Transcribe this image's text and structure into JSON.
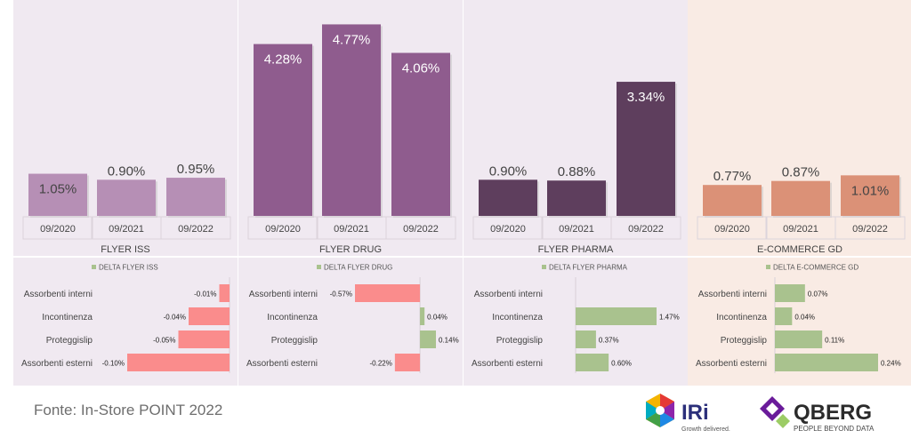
{
  "colors": {
    "iss_bar": "#b68fb5",
    "drug_bar": "#8f5c8e",
    "pharma_bar": "#5e3e5d",
    "ecom_bar": "#db9177",
    "neg_bar": "#fa8c8c",
    "pos_bar": "#a9c28e",
    "bg_purple": "#f0e9f1",
    "bg_peach": "#f9ebe4"
  },
  "chart_data": [
    {
      "type": "bar",
      "categories": [
        "09/2020",
        "09/2021",
        "09/2022"
      ],
      "values": [
        1.05,
        0.9,
        0.95
      ],
      "value_labels": [
        "1.05%",
        "0.90%",
        "0.95%"
      ],
      "xlabel": "FLYER ISS",
      "ylim": [
        0,
        5.2
      ],
      "legend": "top-center",
      "delta": {
        "legend": "DELTA FLYER ISS",
        "categories": [
          "Assorbenti interni",
          "Incontinenza",
          "Proteggislip",
          "Assorbenti esterni"
        ],
        "values": [
          -0.01,
          -0.04,
          -0.05,
          -0.1
        ],
        "value_labels": [
          "-0.01%",
          "-0.04%",
          "-0.05%",
          "-0.10%"
        ],
        "xlim": [
          -0.1,
          0
        ]
      }
    },
    {
      "type": "bar",
      "categories": [
        "09/2020",
        "09/2021",
        "09/2022"
      ],
      "values": [
        4.28,
        4.77,
        4.06
      ],
      "value_labels": [
        "4.28%",
        "4.77%",
        "4.06%"
      ],
      "xlabel": "FLYER DRUG",
      "ylim": [
        0,
        5.2
      ],
      "legend": "top-center",
      "delta": {
        "legend": "DELTA FLYER DRUG",
        "categories": [
          "Assorbenti interni",
          "Incontinenza",
          "Proteggislip",
          "Assorbenti esterni"
        ],
        "values": [
          -0.57,
          0.04,
          0.14,
          -0.22
        ],
        "value_labels": [
          "-0.57%",
          "0.04%",
          "0.14%",
          "-0.22%"
        ],
        "xlim": [
          -0.57,
          0.14
        ]
      }
    },
    {
      "type": "bar",
      "categories": [
        "09/2020",
        "09/2021",
        "09/2022"
      ],
      "values": [
        0.9,
        0.88,
        3.34
      ],
      "value_labels": [
        "0.90%",
        "0.88%",
        "3.34%"
      ],
      "xlabel": "FLYER PHARMA",
      "ylim": [
        0,
        5.2
      ],
      "legend": "top-center",
      "delta": {
        "legend": "DELTA FLYER PHARMA",
        "categories": [
          "Assorbenti interni",
          "Incontinenza",
          "Proteggislip",
          "Assorbenti esterni"
        ],
        "values": [
          0,
          1.47,
          0.37,
          0.6
        ],
        "value_labels": [
          "",
          "1.47%",
          "0.37%",
          "0.60%"
        ],
        "xlim": [
          0,
          1.47
        ]
      }
    },
    {
      "type": "bar",
      "categories": [
        "09/2020",
        "09/2021",
        "09/2022"
      ],
      "values": [
        0.77,
        0.87,
        1.01
      ],
      "value_labels": [
        "0.77%",
        "0.87%",
        "1.01%"
      ],
      "xlabel": "E-COMMERCE GD",
      "ylim": [
        0,
        5.2
      ],
      "legend": "top-center",
      "delta": {
        "legend": "DELTA E-COMMERCE GD",
        "categories": [
          "Assorbenti interni",
          "Incontinenza",
          "Proteggislip",
          "Assorbenti esterni"
        ],
        "values": [
          0.07,
          0.04,
          0.11,
          0.24
        ],
        "value_labels": [
          "0.07%",
          "0.04%",
          "0.11%",
          "0.24%"
        ],
        "xlim": [
          0,
          0.24
        ]
      }
    }
  ],
  "footer": {
    "source": "Fonte: In-Store POINT 2022"
  },
  "logos": {
    "iri_name": "IRi",
    "iri_tagline": "Growth delivered.",
    "qberg_name": "QBERG",
    "qberg_tagline": "PEOPLE BEYOND DATA"
  }
}
